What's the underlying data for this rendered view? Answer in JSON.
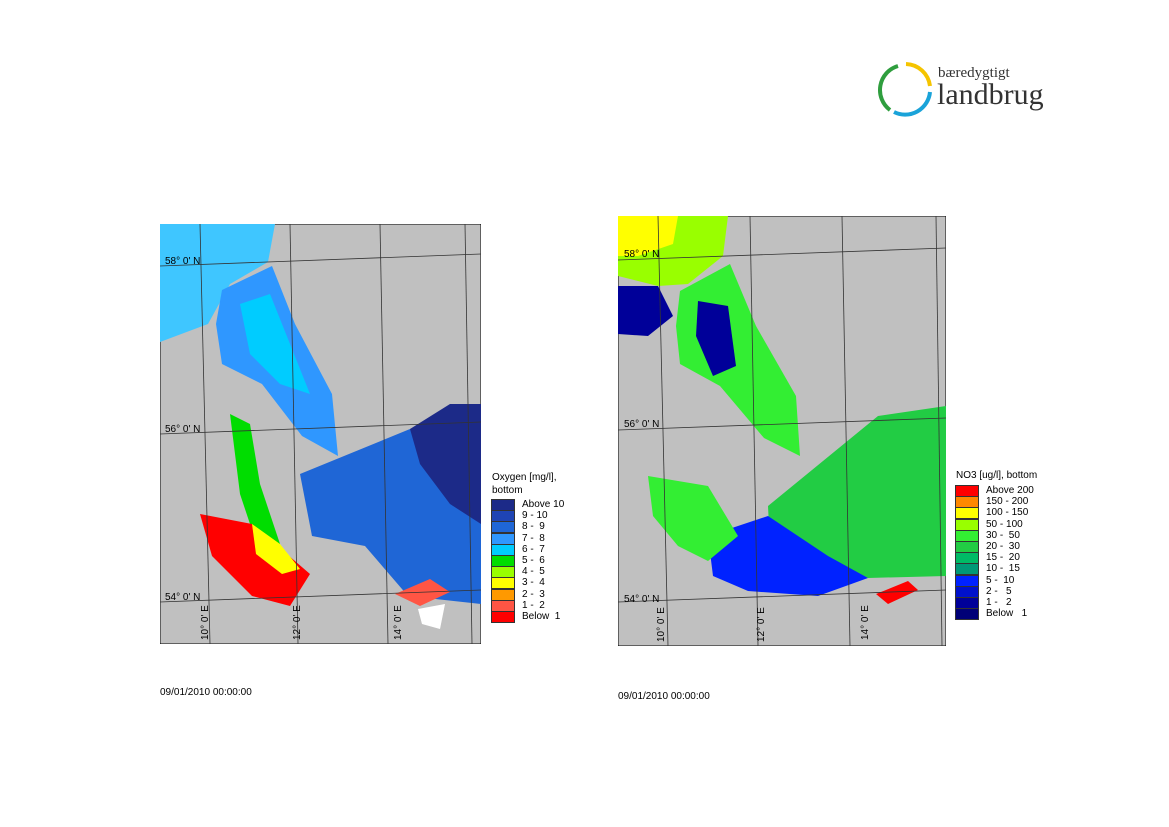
{
  "logo": {
    "line1": "bæredygtigt",
    "line2": "landbrug"
  },
  "maps": [
    {
      "lat_labels": [
        "58° 0' N",
        "56° 0' N",
        "54° 0' N"
      ],
      "lon_labels": [
        "10° 0' E",
        "12° 0' E",
        "14° 0' E"
      ],
      "legend": {
        "title": [
          "Oxygen [mg/l],",
          "bottom"
        ],
        "items": [
          {
            "label": "Above 10",
            "color": "#1c2a88"
          },
          {
            "label": "9 - 10",
            "color": "#1f44b4"
          },
          {
            "label": "8 -  9",
            "color": "#1f66d6"
          },
          {
            "label": "7 -  8",
            "color": "#2f97ff"
          },
          {
            "label": "6 -  7",
            "color": "#00ccff"
          },
          {
            "label": "5 -  6",
            "color": "#00dd00"
          },
          {
            "label": "4 -  5",
            "color": "#99ff00"
          },
          {
            "label": "3 -  4",
            "color": "#ffff00"
          },
          {
            "label": "2 -  3",
            "color": "#ff9900"
          },
          {
            "label": "1 -  2",
            "color": "#ff5544"
          },
          {
            "label": "Below  1",
            "color": "#ff0000"
          }
        ]
      },
      "timestamp": "09/01/2010 00:00:00"
    },
    {
      "lat_labels": [
        "58° 0' N",
        "56° 0' N",
        "54° 0' N"
      ],
      "lon_labels": [
        "10° 0' E",
        "12° 0' E",
        "14° 0' E"
      ],
      "legend": {
        "title": [
          "NO3 [ug/l], bottom"
        ],
        "items": [
          {
            "label": "Above 200",
            "color": "#ff0000"
          },
          {
            "label": "150 - 200",
            "color": "#ff8800"
          },
          {
            "label": "100 - 150",
            "color": "#ffff00"
          },
          {
            "label": "50 - 100",
            "color": "#99ff00"
          },
          {
            "label": "30 -  50",
            "color": "#33ee33"
          },
          {
            "label": "20 -  30",
            "color": "#22cc44"
          },
          {
            "label": "15 -  20",
            "color": "#00bb66"
          },
          {
            "label": "10 -  15",
            "color": "#009977"
          },
          {
            "label": "5 -  10",
            "color": "#0022ff"
          },
          {
            "label": "2 -   5",
            "color": "#0011cc"
          },
          {
            "label": "1 -   2",
            "color": "#000099"
          },
          {
            "label": "Below   1",
            "color": "#000077"
          }
        ]
      },
      "timestamp": "09/01/2010 00:00:00"
    }
  ]
}
